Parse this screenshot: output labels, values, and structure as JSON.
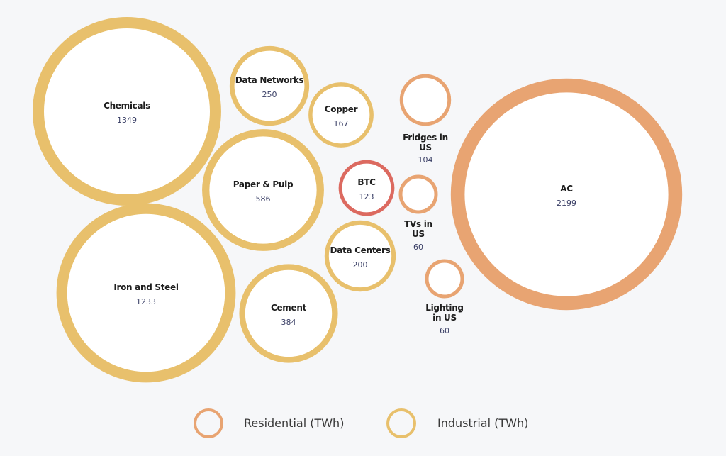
{
  "chart_data": {
    "type": "bubble",
    "unit": "TWh",
    "colors": {
      "Residential": "#e8a472",
      "Industrial": "#e8c06c",
      "BTC": "#dc6a60"
    },
    "legend": [
      {
        "label": "Residential (TWh)",
        "category": "Residential"
      },
      {
        "label": "Industrial (TWh)",
        "category": "Industrial"
      }
    ],
    "legend_placement": "bottom",
    "bubbles": [
      {
        "name": "Chemicals",
        "value": 1349,
        "category": "Industrial"
      },
      {
        "name": "Iron and Steel",
        "value": 1233,
        "category": "Industrial"
      },
      {
        "name": "Paper & Pulp",
        "value": 586,
        "category": "Industrial"
      },
      {
        "name": "Cement",
        "value": 384,
        "category": "Industrial"
      },
      {
        "name": "Data Networks",
        "value": 250,
        "category": "Industrial"
      },
      {
        "name": "Copper",
        "value": 167,
        "category": "Industrial"
      },
      {
        "name": "Data Centers",
        "value": 200,
        "category": "Industrial"
      },
      {
        "name": "BTC",
        "value": 123,
        "category": "BTC"
      },
      {
        "name": "Fridges in US",
        "value": 104,
        "category": "Residential"
      },
      {
        "name": "TVs in US",
        "value": 60,
        "category": "Residential"
      },
      {
        "name": "Lighting in US",
        "value": 60,
        "category": "Residential"
      },
      {
        "name": "AC",
        "value": 2199,
        "category": "Residential"
      }
    ]
  }
}
